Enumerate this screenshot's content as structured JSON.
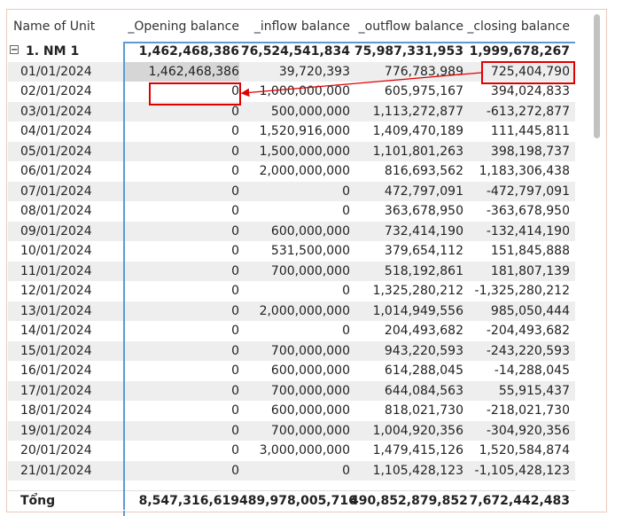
{
  "columns": {
    "name": "Name of Unit",
    "opening": "_Opening balance",
    "inflow": "_inflow balance",
    "outflow": "_outflow balance",
    "closing": "_closing balance"
  },
  "group": {
    "expand_glyph": "−",
    "name": "1. NM 1",
    "opening": "1,462,468,386",
    "inflow": "76,524,541,834",
    "outflow": "75,987,331,953",
    "closing": "1,999,678,267"
  },
  "rows": [
    {
      "date": "01/01/2024",
      "opening": "1,462,468,386",
      "inflow": "39,720,393",
      "outflow": "776,783,989",
      "closing": "725,404,790"
    },
    {
      "date": "02/01/2024",
      "opening": "0",
      "inflow": "1,000,000,000",
      "outflow": "605,975,167",
      "closing": "394,024,833"
    },
    {
      "date": "03/01/2024",
      "opening": "0",
      "inflow": "500,000,000",
      "outflow": "1,113,272,877",
      "closing": "-613,272,877"
    },
    {
      "date": "04/01/2024",
      "opening": "0",
      "inflow": "1,520,916,000",
      "outflow": "1,409,470,189",
      "closing": "111,445,811"
    },
    {
      "date": "05/01/2024",
      "opening": "0",
      "inflow": "1,500,000,000",
      "outflow": "1,101,801,263",
      "closing": "398,198,737"
    },
    {
      "date": "06/01/2024",
      "opening": "0",
      "inflow": "2,000,000,000",
      "outflow": "816,693,562",
      "closing": "1,183,306,438"
    },
    {
      "date": "07/01/2024",
      "opening": "0",
      "inflow": "0",
      "outflow": "472,797,091",
      "closing": "-472,797,091"
    },
    {
      "date": "08/01/2024",
      "opening": "0",
      "inflow": "0",
      "outflow": "363,678,950",
      "closing": "-363,678,950"
    },
    {
      "date": "09/01/2024",
      "opening": "0",
      "inflow": "600,000,000",
      "outflow": "732,414,190",
      "closing": "-132,414,190"
    },
    {
      "date": "10/01/2024",
      "opening": "0",
      "inflow": "531,500,000",
      "outflow": "379,654,112",
      "closing": "151,845,888"
    },
    {
      "date": "11/01/2024",
      "opening": "0",
      "inflow": "700,000,000",
      "outflow": "518,192,861",
      "closing": "181,807,139"
    },
    {
      "date": "12/01/2024",
      "opening": "0",
      "inflow": "0",
      "outflow": "1,325,280,212",
      "closing": "-1,325,280,212"
    },
    {
      "date": "13/01/2024",
      "opening": "0",
      "inflow": "2,000,000,000",
      "outflow": "1,014,949,556",
      "closing": "985,050,444"
    },
    {
      "date": "14/01/2024",
      "opening": "0",
      "inflow": "0",
      "outflow": "204,493,682",
      "closing": "-204,493,682"
    },
    {
      "date": "15/01/2024",
      "opening": "0",
      "inflow": "700,000,000",
      "outflow": "943,220,593",
      "closing": "-243,220,593"
    },
    {
      "date": "16/01/2024",
      "opening": "0",
      "inflow": "600,000,000",
      "outflow": "614,288,045",
      "closing": "-14,288,045"
    },
    {
      "date": "17/01/2024",
      "opening": "0",
      "inflow": "700,000,000",
      "outflow": "644,084,563",
      "closing": "55,915,437"
    },
    {
      "date": "18/01/2024",
      "opening": "0",
      "inflow": "600,000,000",
      "outflow": "818,021,730",
      "closing": "-218,021,730"
    },
    {
      "date": "19/01/2024",
      "opening": "0",
      "inflow": "700,000,000",
      "outflow": "1,004,920,356",
      "closing": "-304,920,356"
    },
    {
      "date": "20/01/2024",
      "opening": "0",
      "inflow": "3,000,000,000",
      "outflow": "1,479,415,126",
      "closing": "1,520,584,874"
    },
    {
      "date": "21/01/2024",
      "opening": "0",
      "inflow": "0",
      "outflow": "1,105,428,123",
      "closing": "-1,105,428,123"
    }
  ],
  "total": {
    "label": "Tổng",
    "opening": "8,547,316,619",
    "inflow": "489,978,005,716",
    "outflow": "490,852,879,852",
    "closing": "7,672,442,483"
  },
  "colors": {
    "accent_line": "#5b9bd5",
    "highlight": "#e00000",
    "row_alt": "#eeeeee"
  }
}
